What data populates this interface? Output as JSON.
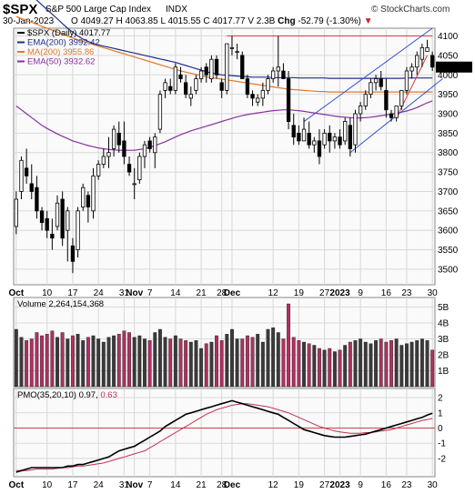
{
  "header": {
    "symbol": "$SPX",
    "name": "S&P 500 Large Cap Index",
    "exchange": "INDX",
    "watermark": "© StockCharts.com",
    "date": "30-Jan-2023",
    "open_label": "O",
    "open": "4049.27",
    "high_label": "H",
    "high": "4063.85",
    "low_label": "L",
    "low": "4015.55",
    "close_label": "C",
    "close": "4017.77",
    "volume_label": "V",
    "volume": "2.3B",
    "chg_label": "Chg",
    "chg": "-52.79 (-1.30%)",
    "chg_arrow": "▼"
  },
  "colors": {
    "up_candle": "#ffffff",
    "down_candle": "#000000",
    "volume_up": "#3a3a3a",
    "volume_down": "#b03060",
    "ema200": "#1f2d8a",
    "ma200": "#e07a2a",
    "ema50": "#8a30a0",
    "pmo": "#000000",
    "pmo_signal": "#c03050",
    "trend": "#3050d0",
    "resistance": "#d04040",
    "grid": "#d8d8d8",
    "panel_bg": "#fafafa"
  },
  "chart_data": [
    {
      "type": "candlestick",
      "title": "$SPX (Daily) 4017.77",
      "legend": [
        {
          "name": "$SPX (Daily)",
          "value": "4017.77",
          "color": "#000000"
        },
        {
          "name": "EMA(200)",
          "value": "3992.42",
          "color": "#1f2d8a"
        },
        {
          "name": "MA(200)",
          "value": "3955.86",
          "color": "#e07a2a"
        },
        {
          "name": "EMA(50)",
          "value": "3932.62",
          "color": "#8a30a0"
        }
      ],
      "ylim": [
        3460,
        4120
      ],
      "y_ticks": [
        3500,
        3550,
        3600,
        3650,
        3700,
        3750,
        3800,
        3850,
        3900,
        3950,
        4000,
        4050,
        4100
      ],
      "x_ticks": [
        {
          "i": 0,
          "label": "Oct"
        },
        {
          "i": 6,
          "label": "10"
        },
        {
          "i": 11,
          "label": "17"
        },
        {
          "i": 16,
          "label": "24"
        },
        {
          "i": 21,
          "label": "31"
        },
        {
          "i": 23,
          "label": "Nov"
        },
        {
          "i": 26,
          "label": "7"
        },
        {
          "i": 31,
          "label": "14"
        },
        {
          "i": 36,
          "label": "21"
        },
        {
          "i": 40,
          "label": "28"
        },
        {
          "i": 42,
          "label": "Dec"
        },
        {
          "i": 50,
          "label": "12"
        },
        {
          "i": 55,
          "label": "19"
        },
        {
          "i": 60,
          "label": "27"
        },
        {
          "i": 63,
          "label": "2023"
        },
        {
          "i": 67,
          "label": "9"
        },
        {
          "i": 72,
          "label": "16"
        },
        {
          "i": 76,
          "label": "23"
        },
        {
          "i": 81,
          "label": "30"
        }
      ],
      "ohlc": [
        [
          3610,
          3700,
          3590,
          3680
        ],
        [
          3700,
          3790,
          3680,
          3780
        ],
        [
          3760,
          3810,
          3720,
          3740
        ],
        [
          3720,
          3770,
          3680,
          3700
        ],
        [
          3710,
          3740,
          3630,
          3650
        ],
        [
          3650,
          3660,
          3600,
          3620
        ],
        [
          3630,
          3650,
          3580,
          3600
        ],
        [
          3590,
          3630,
          3550,
          3580
        ],
        [
          3610,
          3690,
          3600,
          3670
        ],
        [
          3680,
          3700,
          3560,
          3580
        ],
        [
          3600,
          3660,
          3520,
          3650
        ],
        [
          3560,
          3580,
          3490,
          3520
        ],
        [
          3550,
          3660,
          3530,
          3650
        ],
        [
          3660,
          3720,
          3650,
          3710
        ],
        [
          3690,
          3700,
          3620,
          3660
        ],
        [
          3650,
          3760,
          3630,
          3740
        ],
        [
          3740,
          3780,
          3730,
          3770
        ],
        [
          3770,
          3810,
          3760,
          3790
        ],
        [
          3790,
          3840,
          3760,
          3800
        ],
        [
          3810,
          3870,
          3790,
          3860
        ],
        [
          3850,
          3880,
          3800,
          3820
        ],
        [
          3830,
          3880,
          3770,
          3790
        ],
        [
          3770,
          3790,
          3740,
          3750
        ],
        [
          3720,
          3760,
          3680,
          3720
        ],
        [
          3730,
          3800,
          3720,
          3790
        ],
        [
          3790,
          3830,
          3760,
          3820
        ],
        [
          3830,
          3840,
          3800,
          3810
        ],
        [
          3800,
          3850,
          3760,
          3840
        ],
        [
          3860,
          3960,
          3850,
          3950
        ],
        [
          3960,
          3990,
          3940,
          3980
        ],
        [
          3970,
          3990,
          3950,
          3960
        ],
        [
          3960,
          4030,
          3950,
          4020
        ],
        [
          4000,
          4020,
          3980,
          3990
        ],
        [
          3980,
          4000,
          3940,
          3950
        ],
        [
          3940,
          3970,
          3920,
          3950
        ],
        [
          3960,
          4000,
          3950,
          3990
        ],
        [
          3990,
          4020,
          3980,
          4010
        ],
        [
          4020,
          4030,
          3980,
          4000
        ],
        [
          3990,
          4050,
          3980,
          4040
        ],
        [
          4040,
          4050,
          3990,
          4000
        ],
        [
          3980,
          3990,
          3940,
          3960
        ],
        [
          3960,
          4080,
          3950,
          4080
        ],
        [
          4070,
          4100,
          4050,
          4070
        ],
        [
          4060,
          4080,
          4040,
          4060
        ],
        [
          4050,
          4060,
          3990,
          3990
        ],
        [
          3990,
          4000,
          3940,
          3950
        ],
        [
          3950,
          3960,
          3920,
          3940
        ],
        [
          3930,
          3950,
          3920,
          3940
        ],
        [
          3940,
          3980,
          3920,
          3960
        ],
        [
          3960,
          4000,
          3950,
          3990
        ],
        [
          3990,
          4020,
          3980,
          4010
        ],
        [
          4010,
          4100,
          3970,
          4020
        ],
        [
          4010,
          4030,
          3990,
          3990
        ],
        [
          3990,
          4010,
          3860,
          3880
        ],
        [
          3870,
          3900,
          3820,
          3840
        ],
        [
          3850,
          3870,
          3820,
          3830
        ],
        [
          3830,
          3890,
          3830,
          3860
        ],
        [
          3850,
          3880,
          3810,
          3820
        ],
        [
          3820,
          3840,
          3800,
          3830
        ],
        [
          3830,
          3860,
          3770,
          3790
        ],
        [
          3820,
          3860,
          3810,
          3850
        ],
        [
          3850,
          3870,
          3800,
          3830
        ],
        [
          3830,
          3850,
          3810,
          3840
        ],
        [
          3840,
          3860,
          3810,
          3820
        ],
        [
          3830,
          3890,
          3820,
          3880
        ],
        [
          3870,
          3890,
          3790,
          3810
        ],
        [
          3820,
          3910,
          3800,
          3900
        ],
        [
          3900,
          3930,
          3880,
          3920
        ],
        [
          3920,
          3960,
          3910,
          3950
        ],
        [
          3950,
          3990,
          3940,
          3980
        ],
        [
          3980,
          4000,
          3960,
          3990
        ],
        [
          3990,
          4010,
          3960,
          3970
        ],
        [
          3960,
          3990,
          3890,
          3910
        ],
        [
          3900,
          3910,
          3880,
          3890
        ],
        [
          3890,
          3920,
          3880,
          3920
        ],
        [
          3920,
          3960,
          3910,
          3960
        ],
        [
          3960,
          4020,
          3950,
          4010
        ],
        [
          4010,
          4030,
          3990,
          4020
        ],
        [
          4020,
          4060,
          4000,
          4050
        ],
        [
          4040,
          4080,
          4020,
          4070
        ],
        [
          4060,
          4090,
          4060,
          4070
        ],
        [
          4050,
          4060,
          4010,
          4020
        ]
      ],
      "ema200": [
        4240,
        4228,
        4216,
        4204,
        4192,
        4180,
        4168,
        4156,
        4144,
        4132,
        4120,
        4110,
        4100,
        4092,
        4086,
        4081,
        4077,
        4074,
        4071,
        4068,
        4065,
        4062,
        4059,
        4056,
        4053,
        4050,
        4047,
        4044,
        4041,
        4038,
        4035,
        4032,
        4028,
        4024,
        4020,
        4016,
        4012,
        4008,
        4005,
        4002,
        4000,
        3999,
        3998,
        3997,
        3996,
        3995,
        3994,
        3994,
        3994,
        3994,
        3993,
        3993,
        3993,
        3993,
        3993,
        3992,
        3992,
        3992,
        3992,
        3992,
        3992,
        3991,
        3991,
        3991,
        3991,
        3991,
        3991,
        3991,
        3991,
        3991,
        3991,
        3991,
        3991,
        3991,
        3991,
        3991,
        3992,
        3992,
        3992,
        3992,
        3992,
        3992
      ],
      "ma200": [
        4150,
        4145,
        4140,
        4135,
        4130,
        4125,
        4120,
        4115,
        4110,
        4105,
        4100,
        4095,
        4090,
        4086,
        4082,
        4078,
        4074,
        4070,
        4066,
        4062,
        4058,
        4054,
        4050,
        4046,
        4042,
        4038,
        4034,
        4030,
        4026,
        4022,
        4018,
        4014,
        4010,
        4007,
        4004,
        4001,
        3998,
        3995,
        3993,
        3991,
        3989,
        3987,
        3985,
        3983,
        3981,
        3979,
        3977,
        3975,
        3973,
        3971,
        3969,
        3967,
        3965,
        3963,
        3962,
        3961,
        3960,
        3959,
        3958,
        3957,
        3957,
        3956,
        3956,
        3956,
        3956,
        3956,
        3956,
        3956,
        3956,
        3956,
        3956,
        3956,
        3956,
        3956,
        3956,
        3956,
        3956,
        3956,
        3956,
        3956,
        3956,
        3956
      ],
      "ema50": [
        3920,
        3910,
        3900,
        3890,
        3880,
        3870,
        3862,
        3855,
        3848,
        3842,
        3836,
        3830,
        3826,
        3822,
        3818,
        3815,
        3812,
        3810,
        3808,
        3807,
        3806,
        3806,
        3806,
        3806,
        3808,
        3810,
        3814,
        3818,
        3823,
        3828,
        3834,
        3840,
        3846,
        3851,
        3856,
        3860,
        3864,
        3868,
        3872,
        3876,
        3880,
        3884,
        3888,
        3892,
        3895,
        3898,
        3900,
        3902,
        3904,
        3906,
        3908,
        3909,
        3910,
        3910,
        3909,
        3908,
        3906,
        3904,
        3902,
        3900,
        3898,
        3896,
        3894,
        3892,
        3891,
        3890,
        3889,
        3889,
        3890,
        3891,
        3893,
        3895,
        3897,
        3899,
        3901,
        3904,
        3907,
        3911,
        3916,
        3922,
        3928,
        3933
      ],
      "annotations": [
        {
          "type": "resistance",
          "from": [
            41,
            4100
          ],
          "to": [
            81,
            4100
          ]
        },
        {
          "type": "channel_upper",
          "from": [
            56,
            3880
          ],
          "to": [
            81,
            4120
          ]
        },
        {
          "type": "channel_lower",
          "from": [
            65,
            3800
          ],
          "to": [
            83,
            3990
          ]
        },
        {
          "type": "rising_support",
          "from": [
            74,
            3890
          ],
          "to": [
            80,
            4050
          ]
        }
      ]
    },
    {
      "type": "bar",
      "title": "Volume 2,264,154,368",
      "label": "Volume",
      "value": "2,264,154,368",
      "ylim": [
        0,
        5.6
      ],
      "y_ticks": [
        1,
        2,
        3,
        4,
        5
      ],
      "y_tick_labels": [
        "1B",
        "2B",
        "3B",
        "4B",
        "5B"
      ],
      "values": [
        3.6,
        3.1,
        2.9,
        3.0,
        3.4,
        3.2,
        3.3,
        3.5,
        3.1,
        3.4,
        3.0,
        3.2,
        3.3,
        2.9,
        3.1,
        3.2,
        3.0,
        2.8,
        3.1,
        3.2,
        3.3,
        3.5,
        3.4,
        3.1,
        3.2,
        3.0,
        2.9,
        3.4,
        3.6,
        3.1,
        3.0,
        3.2,
        3.0,
        2.9,
        2.8,
        2.9,
        2.4,
        2.7,
        2.8,
        3.2,
        2.9,
        3.3,
        3.6,
        3.0,
        3.0,
        3.2,
        3.1,
        3.3,
        2.8,
        3.6,
        3.7,
        3.4,
        3.0,
        5.2,
        3.1,
        2.9,
        2.8,
        2.7,
        2.6,
        2.4,
        2.3,
        2.4,
        2.2,
        2.3,
        2.6,
        2.8,
        2.9,
        3.0,
        2.8,
        2.7,
        2.9,
        3.0,
        2.8,
        2.9,
        3.0,
        2.6,
        2.7,
        2.8,
        2.9,
        3.0,
        2.9,
        2.3
      ]
    },
    {
      "type": "line",
      "title": "PMO(35,20,10) 0.97, 0.63",
      "label": "PMO(35,20,10)",
      "pmo_value": "0.97",
      "signal_value": "0.63",
      "ylim": [
        -3.2,
        2.6
      ],
      "y_ticks": [
        -2,
        -1,
        0,
        1,
        2
      ],
      "pmo": [
        -2.9,
        -2.8,
        -2.7,
        -2.6,
        -2.6,
        -2.6,
        -2.6,
        -2.6,
        -2.6,
        -2.6,
        -2.5,
        -2.5,
        -2.4,
        -2.4,
        -2.3,
        -2.2,
        -2.1,
        -2.0,
        -1.9,
        -1.7,
        -1.5,
        -1.4,
        -1.3,
        -1.2,
        -1.0,
        -0.8,
        -0.6,
        -0.4,
        -0.2,
        0.1,
        0.3,
        0.5,
        0.7,
        0.9,
        1.0,
        1.1,
        1.2,
        1.3,
        1.4,
        1.5,
        1.6,
        1.7,
        1.8,
        1.7,
        1.6,
        1.5,
        1.4,
        1.3,
        1.2,
        1.1,
        1.0,
        0.9,
        0.7,
        0.5,
        0.3,
        0.1,
        -0.1,
        -0.2,
        -0.3,
        -0.4,
        -0.5,
        -0.55,
        -0.6,
        -0.6,
        -0.6,
        -0.55,
        -0.5,
        -0.45,
        -0.4,
        -0.3,
        -0.2,
        -0.1,
        0.0,
        0.1,
        0.2,
        0.3,
        0.4,
        0.5,
        0.6,
        0.7,
        0.85,
        0.97
      ],
      "signal": [
        -2.8,
        -2.8,
        -2.8,
        -2.75,
        -2.7,
        -2.7,
        -2.7,
        -2.7,
        -2.65,
        -2.6,
        -2.6,
        -2.55,
        -2.5,
        -2.5,
        -2.45,
        -2.4,
        -2.35,
        -2.3,
        -2.2,
        -2.1,
        -2.0,
        -1.9,
        -1.8,
        -1.7,
        -1.6,
        -1.5,
        -1.3,
        -1.1,
        -0.9,
        -0.7,
        -0.5,
        -0.3,
        -0.1,
        0.1,
        0.3,
        0.5,
        0.7,
        0.9,
        1.05,
        1.2,
        1.3,
        1.4,
        1.5,
        1.55,
        1.6,
        1.6,
        1.55,
        1.5,
        1.45,
        1.4,
        1.3,
        1.2,
        1.1,
        1.0,
        0.85,
        0.7,
        0.55,
        0.4,
        0.25,
        0.1,
        0.0,
        -0.1,
        -0.2,
        -0.25,
        -0.3,
        -0.35,
        -0.35,
        -0.35,
        -0.3,
        -0.3,
        -0.25,
        -0.2,
        -0.15,
        -0.1,
        0.0,
        0.1,
        0.2,
        0.3,
        0.4,
        0.5,
        0.55,
        0.63
      ]
    }
  ]
}
